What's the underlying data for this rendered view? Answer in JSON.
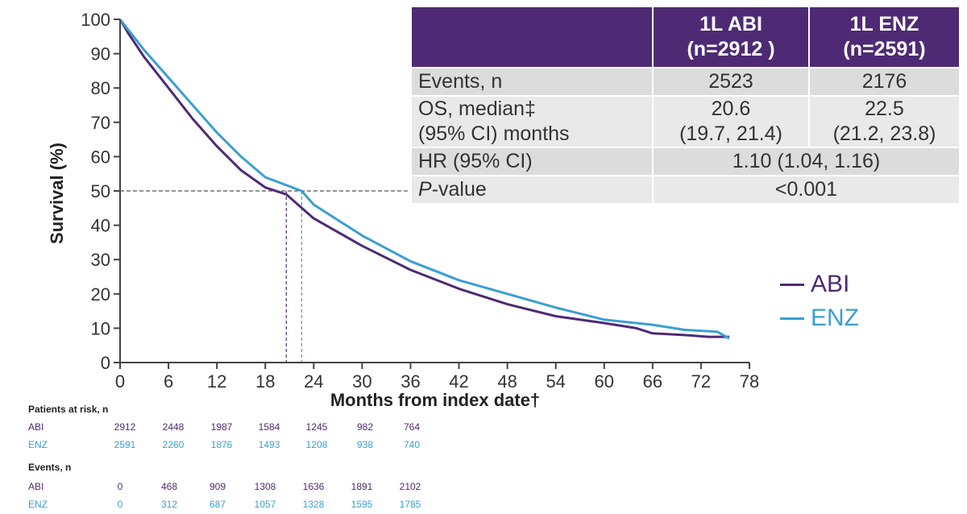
{
  "chart_data": {
    "type": "line",
    "xlabel": "Months from index date†",
    "ylabel": "Survival (%)",
    "xlim": [
      0,
      78
    ],
    "ylim": [
      0,
      100
    ],
    "xticks": [
      0,
      6,
      12,
      18,
      24,
      30,
      36,
      42,
      48,
      54,
      60,
      66,
      72,
      78
    ],
    "yticks": [
      0,
      10,
      20,
      30,
      40,
      50,
      60,
      70,
      80,
      90,
      100
    ],
    "median_reference": {
      "y": 50,
      "x_values": [
        20.6,
        22.5
      ]
    },
    "series": [
      {
        "name": "ABI",
        "color": "#4e2a74",
        "x": [
          0,
          1,
          3,
          6,
          9,
          12,
          15,
          18,
          20.6,
          24,
          30,
          36,
          42,
          48,
          54,
          60,
          64,
          66,
          70,
          73,
          75.5
        ],
        "y": [
          100,
          96,
          89,
          80,
          71,
          63,
          56,
          51,
          49,
          42,
          34,
          27,
          21.5,
          17,
          13.5,
          11.5,
          10,
          8.5,
          8,
          7.5,
          7.5
        ]
      },
      {
        "name": "ENZ",
        "color": "#3b9ed3",
        "x": [
          0,
          1,
          3,
          6,
          9,
          12,
          15,
          18,
          22.5,
          24,
          30,
          36,
          42,
          48,
          54,
          60,
          66,
          70,
          74,
          75.5
        ],
        "y": [
          100,
          97,
          91,
          83,
          75,
          67,
          60,
          54,
          50,
          46,
          37,
          29.5,
          24,
          20,
          16,
          12.5,
          11,
          9.5,
          9,
          7
        ]
      }
    ]
  },
  "summary_table": {
    "headers": [
      "",
      "1L ABI\n(n=2912 )",
      "1L ENZ\n(n=2591)"
    ],
    "rows": [
      {
        "label": "Events, n",
        "abi": "2523",
        "enz": "2176"
      },
      {
        "label": "OS, median‡\n(95% CI) months",
        "abi": "20.6\n(19.7, 21.4)",
        "enz": "22.5\n(21.2, 23.8)"
      },
      {
        "label": "HR (95% CI)",
        "span": "1.10 (1.04, 1.16)"
      },
      {
        "label": "P-value",
        "span": "<0.001"
      }
    ]
  },
  "legend": [
    {
      "label": "ABI",
      "color": "#4e2a74"
    },
    {
      "label": "ENZ",
      "color": "#3b9ed3"
    }
  ],
  "risk_table": {
    "at_risk_heading": "Patients at risk, n",
    "events_heading": "Events, n",
    "at_risk": [
      {
        "label": "ABI",
        "values": [
          "2912",
          "2448",
          "1987",
          "1584",
          "1245",
          "982",
          "764"
        ]
      },
      {
        "label": "ENZ",
        "values": [
          "2591",
          "2260",
          "1876",
          "1493",
          "1208",
          "938",
          "740"
        ]
      }
    ],
    "events": [
      {
        "label": "ABI",
        "values": [
          "0",
          "468",
          "909",
          "1308",
          "1636",
          "1891",
          "2102"
        ]
      },
      {
        "label": "ENZ",
        "values": [
          "0",
          "312",
          "687",
          "1057",
          "1328",
          "1595",
          "1785"
        ]
      }
    ]
  }
}
